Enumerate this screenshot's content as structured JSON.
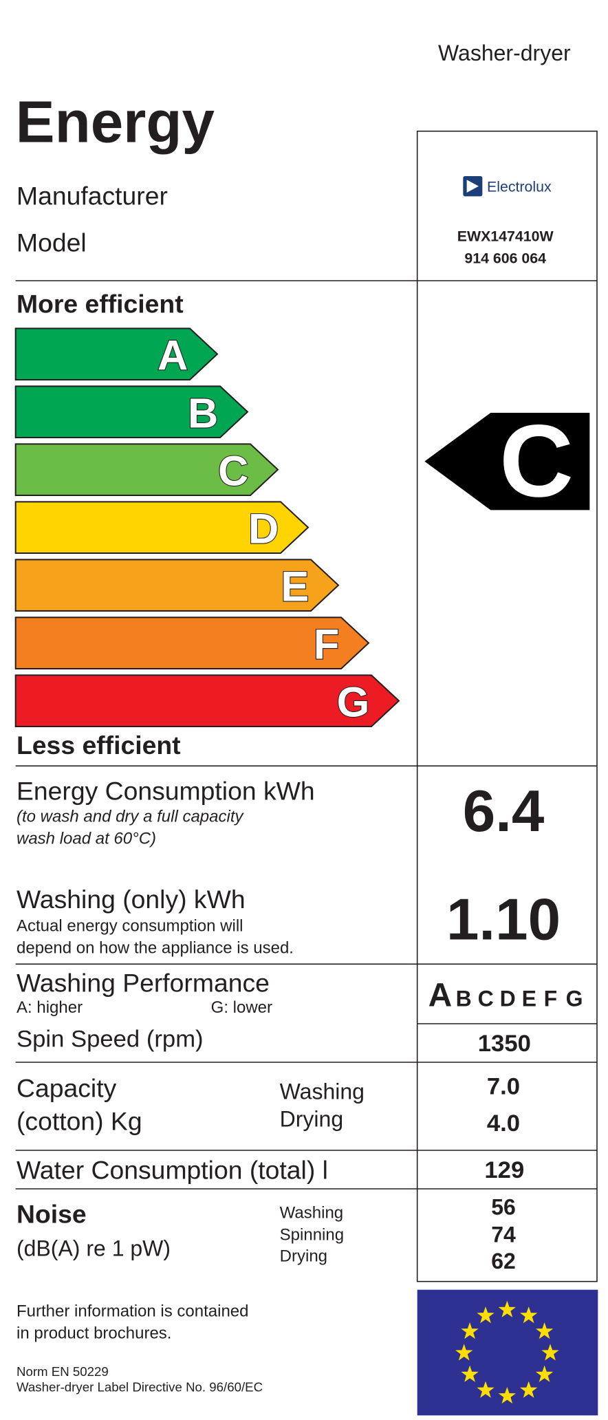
{
  "header": {
    "appliance": "Washer-dryer",
    "title": "Energy",
    "manufacturer_label": "Manufacturer",
    "model_label": "Model",
    "brand": "Electrolux",
    "model_lines": [
      "EWX147410W",
      "914 606 064"
    ]
  },
  "scale": {
    "top_label": "More efficient",
    "bottom_label": "Less efficient",
    "classes": [
      {
        "letter": "A",
        "color": "#00a651"
      },
      {
        "letter": "B",
        "color": "#00a651"
      },
      {
        "letter": "C",
        "color": "#6cbd45"
      },
      {
        "letter": "D",
        "color": "#ffd400"
      },
      {
        "letter": "E",
        "color": "#f7a21b"
      },
      {
        "letter": "F",
        "color": "#f47f20"
      },
      {
        "letter": "G",
        "color": "#ed1c24"
      }
    ],
    "rating": "C"
  },
  "energy": {
    "label": "Energy Consumption kWh",
    "note": [
      "(to wash and dry a full capacity",
      "wash load at 60°C)"
    ],
    "value": "6.4"
  },
  "washing_energy": {
    "label": "Washing (only) kWh",
    "note": [
      "Actual energy consumption will",
      "depend on how the appliance is used."
    ],
    "value": "1.10"
  },
  "washing_performance": {
    "label": "Washing Performance",
    "high": "A:  higher",
    "low": "G:  lower",
    "scale": [
      "A",
      "B",
      "C",
      "D",
      "E",
      "F",
      "G"
    ]
  },
  "spin": {
    "label": "Spin Speed (rpm)",
    "value": "1350"
  },
  "capacity": {
    "label": [
      "Capacity",
      "(cotton) Kg"
    ],
    "rows": [
      {
        "name": "Washing",
        "value": "7.0"
      },
      {
        "name": "Drying",
        "value": "4.0"
      }
    ]
  },
  "water": {
    "label": "Water Consumption (total) l",
    "value": "129"
  },
  "noise": {
    "label": "Noise",
    "unit": "(dB(A) re 1 pW)",
    "rows": [
      {
        "name": "Washing",
        "value": "56"
      },
      {
        "name": "Spinning",
        "value": "74"
      },
      {
        "name": "Drying",
        "value": "62"
      }
    ]
  },
  "footer": {
    "info": [
      "Further information is contained",
      "in product brochures."
    ],
    "norm": [
      "Norm EN 50229",
      "Washer-dryer Label Directive No. 96/60/EC"
    ]
  }
}
